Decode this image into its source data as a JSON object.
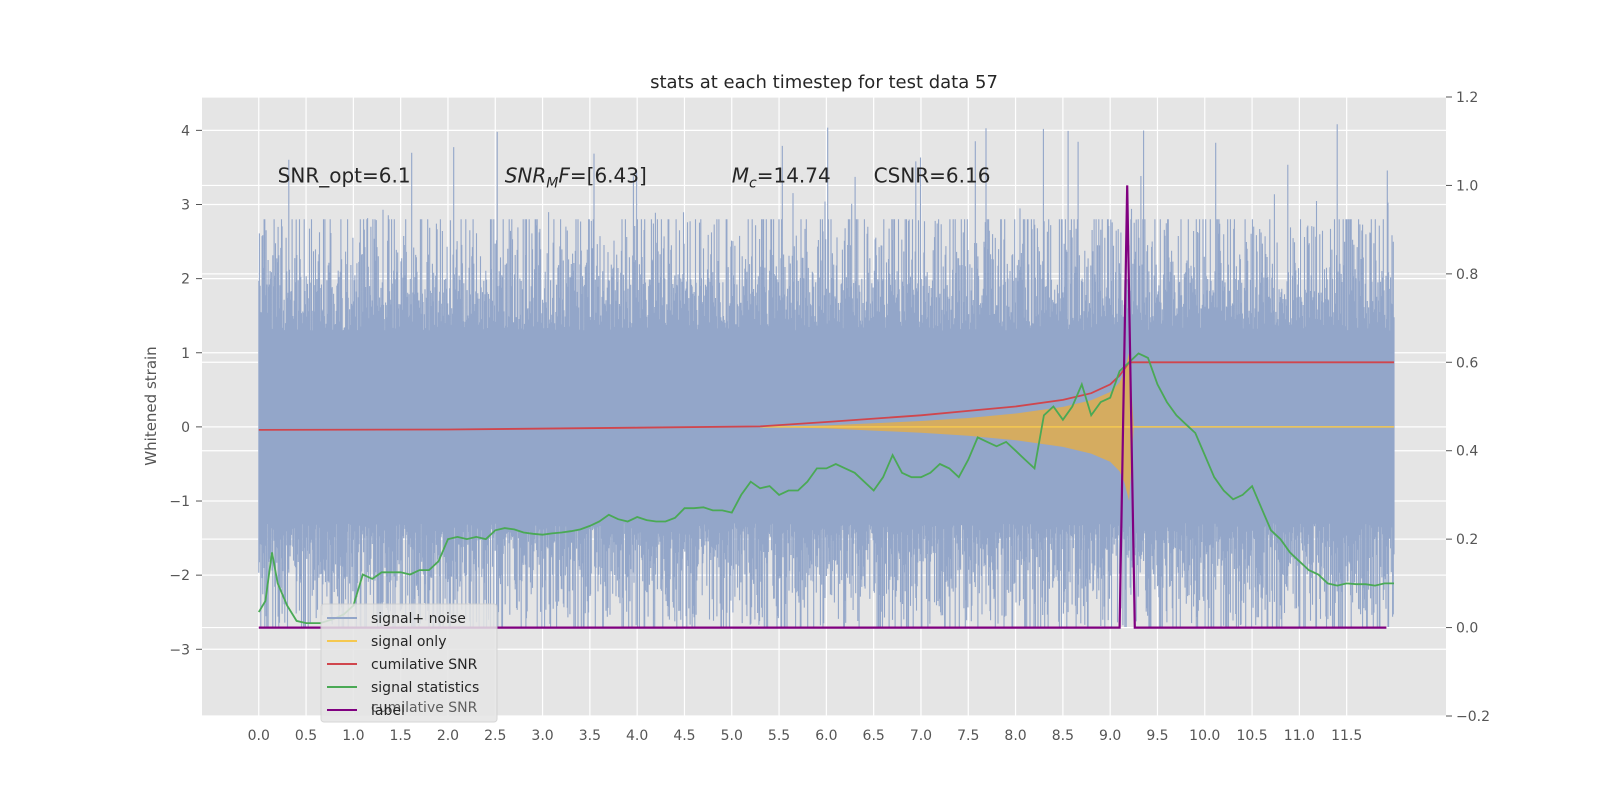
{
  "chart_data": {
    "type": "line",
    "title": "stats at each timestep for test data 57",
    "xlabel": "",
    "ylabel": "Whitened strain",
    "xlim": [
      -0.6,
      12.55
    ],
    "ylim": [
      -3.9,
      4.45
    ],
    "y2lim": [
      -0.2,
      1.2
    ],
    "x_ticks": [
      "0.0",
      "0.5",
      "1.0",
      "1.5",
      "2.0",
      "2.5",
      "3.0",
      "3.5",
      "4.0",
      "4.5",
      "5.0",
      "5.5",
      "6.0",
      "6.5",
      "7.0",
      "7.5",
      "8.0",
      "8.5",
      "9.0",
      "9.5",
      "10.0",
      "10.5",
      "11.0",
      "11.5"
    ],
    "y_ticks": [
      "4",
      "3",
      "2",
      "1",
      "0",
      "−1",
      "−2",
      "−3"
    ],
    "y2_ticks": [
      "1.2",
      "1.0",
      "0.8",
      "0.6",
      "0.4",
      "0.2",
      "0.0",
      "−0.2"
    ],
    "grid": true,
    "legend_position": "lower-left",
    "annotations": [
      {
        "prefix": "SNR_opt=6.1",
        "x": 0.2,
        "y": 3.3
      },
      {
        "prefix": "SNR",
        "sub": "M",
        "suffix": "F=[6.43]",
        "x": 2.6,
        "y": 3.3
      },
      {
        "prefix": "M",
        "sub": "c",
        "suffix": "=14.74",
        "x": 5.0,
        "y": 3.3
      },
      {
        "prefix": "CSNR=6.16",
        "x": 6.5,
        "y": 3.3
      }
    ],
    "legend": [
      {
        "name": "signal+ noise",
        "color": "#93a6c9"
      },
      {
        "name": "signal only",
        "color": "#f5c850"
      },
      {
        "name": "cumilative SNR",
        "color": "#d0464d"
      },
      {
        "name": "signal statistics",
        "color": "#4aa955"
      },
      {
        "name": "label",
        "color": "#800080"
      }
    ],
    "ghost_legend_text": "cumilative SNR",
    "series": [
      {
        "name": "signal+ noise",
        "axis": "left",
        "t_range": [
          0.0,
          12.0
        ],
        "envelope_upper": 1.0,
        "envelope_lower": -1.0,
        "typical_max": 2.8,
        "typical_min": -2.7,
        "max": 4.1,
        "min": -3.5
      },
      {
        "name": "signal only",
        "axis": "left",
        "t_range": [
          5.3,
          9.25
        ],
        "envelope_t": [
          5.3,
          6.0,
          6.5,
          7.0,
          7.5,
          8.0,
          8.5,
          8.8,
          9.0,
          9.1,
          9.15,
          9.2,
          9.25
        ],
        "envelope_amp": [
          0.0,
          0.02,
          0.05,
          0.08,
          0.12,
          0.18,
          0.27,
          0.36,
          0.47,
          0.6,
          0.75,
          1.0,
          0.0
        ]
      },
      {
        "name": "cumilative SNR",
        "axis": "right",
        "x": [
          0.0,
          2.0,
          4.0,
          5.3,
          6.0,
          7.0,
          7.5,
          8.0,
          8.5,
          8.8,
          9.0,
          9.1,
          9.2,
          9.3,
          12.0
        ],
        "y": [
          0.447,
          0.448,
          0.452,
          0.455,
          0.465,
          0.48,
          0.49,
          0.5,
          0.515,
          0.53,
          0.55,
          0.57,
          0.6,
          0.6,
          0.6
        ]
      },
      {
        "name": "signal statistics",
        "axis": "right",
        "x": [
          0.0,
          0.07,
          0.14,
          0.2,
          0.3,
          0.4,
          0.5,
          0.65,
          0.8,
          0.9,
          1.0,
          1.1,
          1.2,
          1.3,
          1.4,
          1.5,
          1.6,
          1.7,
          1.8,
          1.9,
          2.0,
          2.1,
          2.2,
          2.3,
          2.4,
          2.5,
          2.6,
          2.7,
          2.8,
          2.9,
          3.0,
          3.1,
          3.2,
          3.3,
          3.4,
          3.5,
          3.6,
          3.7,
          3.8,
          3.9,
          4.0,
          4.1,
          4.2,
          4.3,
          4.4,
          4.5,
          4.6,
          4.7,
          4.8,
          4.9,
          5.0,
          5.1,
          5.2,
          5.3,
          5.4,
          5.5,
          5.6,
          5.7,
          5.8,
          5.9,
          6.0,
          6.1,
          6.2,
          6.3,
          6.4,
          6.5,
          6.6,
          6.7,
          6.8,
          6.9,
          7.0,
          7.1,
          7.2,
          7.3,
          7.4,
          7.5,
          7.6,
          7.7,
          7.8,
          7.9,
          8.0,
          8.1,
          8.2,
          8.3,
          8.4,
          8.5,
          8.6,
          8.7,
          8.8,
          8.9,
          9.0,
          9.1,
          9.2,
          9.3,
          9.4,
          9.5,
          9.6,
          9.7,
          9.8,
          9.9,
          10.0,
          10.1,
          10.2,
          10.3,
          10.4,
          10.5,
          10.6,
          10.7,
          10.8,
          10.9,
          11.0,
          11.1,
          11.2,
          11.3,
          11.4,
          11.5,
          11.6,
          11.7,
          11.8,
          11.9,
          12.0
        ],
        "y": [
          0.035,
          0.06,
          0.17,
          0.1,
          0.05,
          0.015,
          0.01,
          0.01,
          0.02,
          0.03,
          0.05,
          0.12,
          0.11,
          0.125,
          0.125,
          0.125,
          0.12,
          0.13,
          0.13,
          0.15,
          0.2,
          0.205,
          0.2,
          0.205,
          0.2,
          0.22,
          0.225,
          0.222,
          0.215,
          0.212,
          0.21,
          0.213,
          0.215,
          0.218,
          0.222,
          0.23,
          0.24,
          0.255,
          0.245,
          0.24,
          0.25,
          0.243,
          0.24,
          0.24,
          0.248,
          0.27,
          0.27,
          0.272,
          0.265,
          0.265,
          0.26,
          0.3,
          0.33,
          0.315,
          0.32,
          0.3,
          0.31,
          0.31,
          0.33,
          0.36,
          0.36,
          0.37,
          0.36,
          0.35,
          0.33,
          0.31,
          0.34,
          0.39,
          0.35,
          0.34,
          0.34,
          0.35,
          0.37,
          0.36,
          0.34,
          0.38,
          0.43,
          0.42,
          0.41,
          0.42,
          0.4,
          0.38,
          0.36,
          0.48,
          0.5,
          0.47,
          0.5,
          0.55,
          0.48,
          0.51,
          0.52,
          0.58,
          0.6,
          0.62,
          0.61,
          0.55,
          0.51,
          0.48,
          0.46,
          0.44,
          0.39,
          0.34,
          0.31,
          0.29,
          0.3,
          0.32,
          0.27,
          0.22,
          0.2,
          0.17,
          0.15,
          0.13,
          0.12,
          0.1,
          0.095,
          0.1,
          0.098,
          0.098,
          0.095,
          0.1,
          0.1
        ]
      },
      {
        "name": "label",
        "axis": "right",
        "x": [
          0.0,
          9.1,
          9.18,
          9.26,
          11.92
        ],
        "y": [
          0.0,
          0.0,
          1.0,
          0.0,
          0.0
        ]
      }
    ]
  }
}
